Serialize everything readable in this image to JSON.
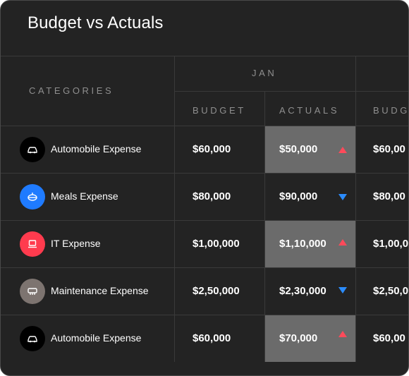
{
  "title": "Budget vs Actuals",
  "headers": {
    "categories": "CATEGORIES",
    "month": "JAN",
    "budget": "BUDGET",
    "actuals": "ACTUALS",
    "budget_next": "BUDG"
  },
  "colors": {
    "background": "#232323",
    "highlight": "#6b6b6b",
    "up_arrow": "#ff4a5a",
    "down_arrow": "#2b8cff"
  },
  "rows": [
    {
      "category": "Automobile Expense",
      "icon": "car-icon",
      "icon_color": "#000000",
      "budget": "$60,000",
      "actual": "$50,000",
      "trend": "up",
      "highlight": true,
      "budget_next": "$60,00"
    },
    {
      "category": "Meals Expense",
      "icon": "meal-icon",
      "icon_color": "#1f7bff",
      "budget": "$80,000",
      "actual": "$90,000",
      "trend": "down",
      "highlight": false,
      "budget_next": "$80,00"
    },
    {
      "category": "IT Expense",
      "icon": "laptop-icon",
      "icon_color": "#ff3b4e",
      "budget": "$1,00,000",
      "actual": "$1,10,000",
      "trend": "up",
      "highlight": true,
      "budget_next": "$1,00,0"
    },
    {
      "category": "Maintenance Expense",
      "icon": "tools-icon",
      "icon_color": "#7d7470",
      "budget": "$2,50,000",
      "actual": "$2,30,000",
      "trend": "down",
      "highlight": false,
      "budget_next": "$2,50,0"
    },
    {
      "category": "Automobile Expense",
      "icon": "car-icon",
      "icon_color": "#000000",
      "budget": "$60,000",
      "actual": "$70,000",
      "trend": "up",
      "highlight": true,
      "budget_next": "$60,00"
    }
  ]
}
